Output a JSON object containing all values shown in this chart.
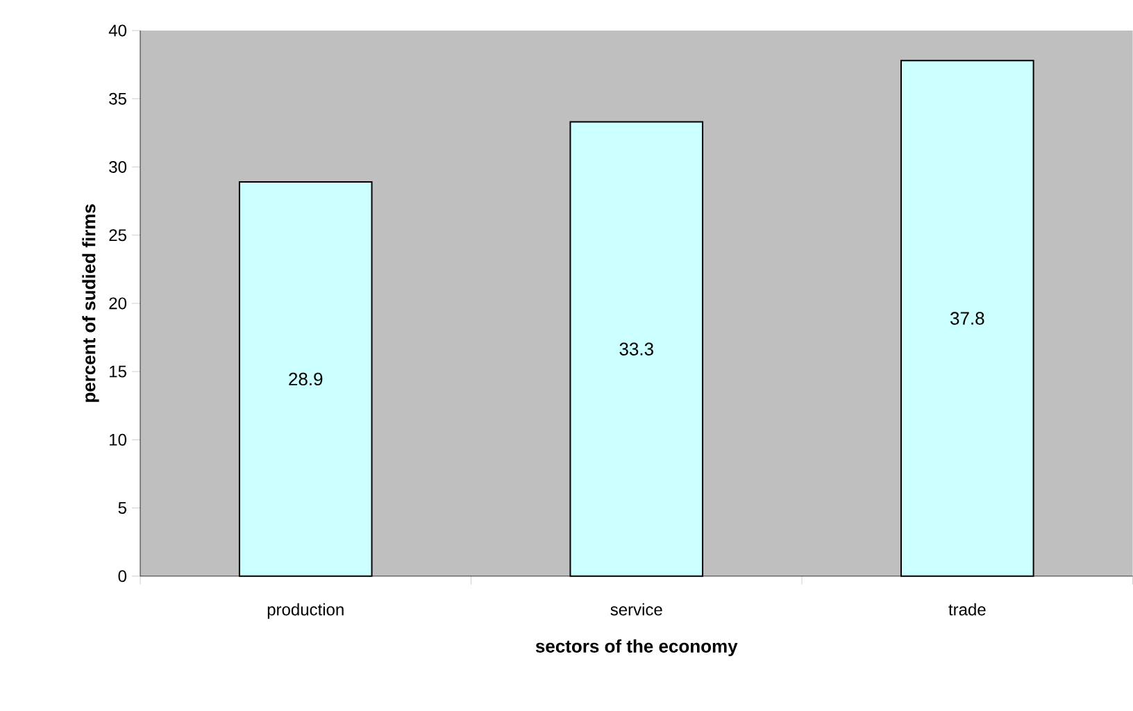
{
  "chart_data": {
    "type": "bar",
    "xlabel": "sectors of the economy",
    "ylabel": "percent of sudied firms",
    "categories": [
      "production",
      "service",
      "trade"
    ],
    "values": [
      28.9,
      33.3,
      37.8
    ],
    "color": "#ccffff",
    "data_labels": true,
    "ylim": [
      0,
      40
    ],
    "yticks": [
      0,
      5,
      10,
      15,
      20,
      25,
      30,
      35,
      40
    ]
  }
}
